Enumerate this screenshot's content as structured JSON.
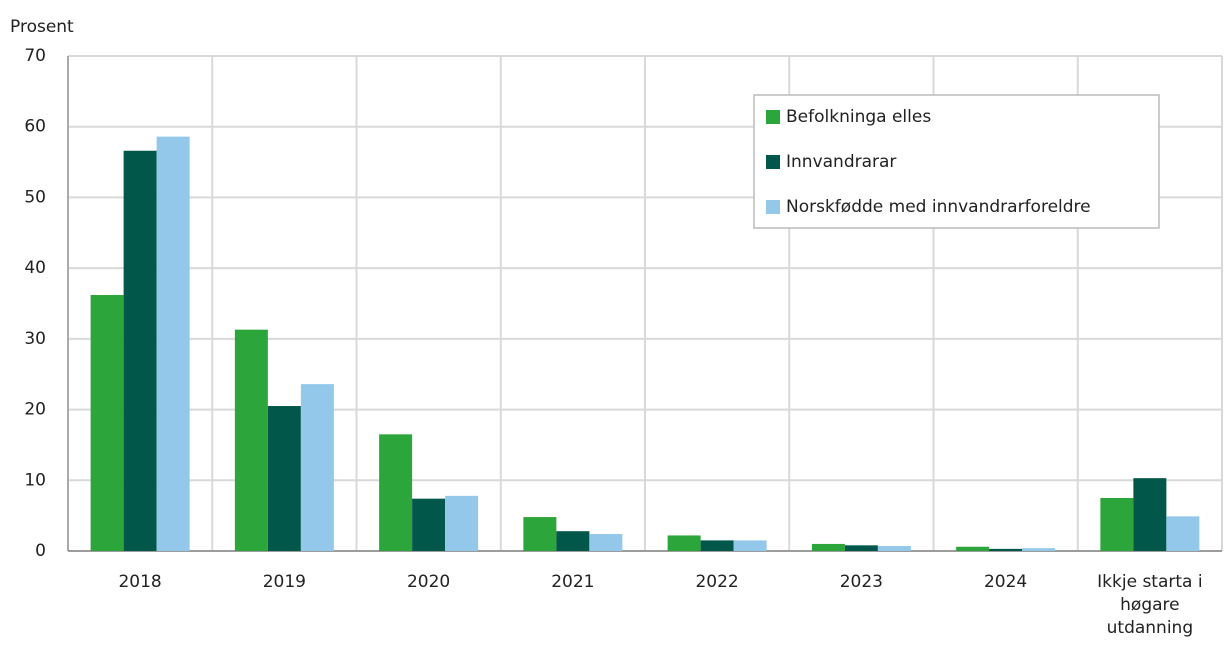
{
  "chart_data": {
    "type": "bar",
    "y_label": "Prosent",
    "categories": [
      "2018",
      "2019",
      "2020",
      "2021",
      "2022",
      "2023",
      "2024",
      "Ikkje starta i høgare utdanning"
    ],
    "series": [
      {
        "name": "Befolkninga elles",
        "color": "#2ca53b",
        "values": [
          36.2,
          31.3,
          16.5,
          4.8,
          2.2,
          1.0,
          0.6,
          7.5
        ]
      },
      {
        "name": "Innvandrarar",
        "color": "#00574a",
        "values": [
          56.6,
          20.5,
          7.4,
          2.8,
          1.5,
          0.8,
          0.3,
          10.3
        ]
      },
      {
        "name": "Norskfødde med innvandrarforeldre",
        "color": "#94c8eb",
        "values": [
          58.6,
          23.6,
          7.8,
          2.4,
          1.5,
          0.7,
          0.4,
          4.9
        ]
      }
    ],
    "ylim": [
      0,
      70
    ],
    "yticks": [
      0,
      10,
      20,
      30,
      40,
      50,
      60,
      70
    ],
    "grid": true,
    "legend": "upper right"
  }
}
